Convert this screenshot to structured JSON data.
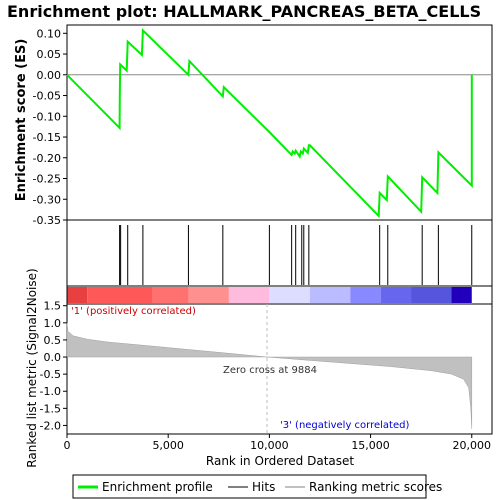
{
  "chart_data": {
    "type": "line",
    "title": "Enrichment plot: HALLMARK_PANCREAS_BETA_CELLS",
    "es_panel": {
      "ylabel": "Enrichment score (ES)",
      "ylim": [
        -0.35,
        0.12
      ],
      "yticks": [
        0.1,
        0.05,
        0.0,
        -0.05,
        -0.1,
        -0.15,
        -0.2,
        -0.25,
        -0.3,
        -0.35
      ],
      "ytick_labels": [
        "0.10",
        "0.05",
        "0.00",
        "-0.05",
        "-0.10",
        "-0.15",
        "-0.20",
        "-0.25",
        "-0.30",
        "-0.35"
      ],
      "series": [
        {
          "name": "Enrichment profile",
          "color": "#00ee00",
          "x": [
            0,
            2600,
            2610,
            2630,
            2950,
            3000,
            3700,
            3750,
            6000,
            6050,
            7700,
            7750,
            10000,
            11100,
            11150,
            11250,
            11300,
            11500,
            11550,
            11650,
            11700,
            11900,
            11950,
            12000,
            15400,
            15450,
            15800,
            15850,
            17500,
            17550,
            18300,
            18350,
            20000,
            20001
          ],
          "y": [
            0.0,
            -0.128,
            -0.05,
            0.025,
            0.01,
            0.08,
            0.048,
            0.107,
            0.0,
            0.033,
            -0.052,
            -0.03,
            -0.138,
            -0.193,
            -0.185,
            -0.19,
            -0.183,
            -0.197,
            -0.185,
            -0.19,
            -0.178,
            -0.188,
            -0.17,
            -0.17,
            -0.34,
            -0.285,
            -0.302,
            -0.245,
            -0.33,
            -0.247,
            -0.285,
            -0.187,
            -0.267,
            0.0
          ]
        }
      ]
    },
    "hits": {
      "name": "Hits",
      "positions": [
        2600,
        2650,
        3000,
        3750,
        6000,
        7700,
        10000,
        11100,
        11300,
        11600,
        11700,
        11950,
        15450,
        15850,
        17550,
        18350,
        20000
      ]
    },
    "heatmap": {
      "colors": [
        "#e84040",
        "#ff5858",
        "#ff7070",
        "#ff9090",
        "#ffbbdd",
        "#ddddff",
        "#bbbbff",
        "#8888ff",
        "#6666ee",
        "#5555dd",
        "#2200bb"
      ],
      "breaks": [
        0,
        1000,
        4200,
        6000,
        8000,
        10000,
        12000,
        14000,
        15500,
        17000,
        19000,
        20000
      ]
    },
    "metric_panel": {
      "ylabel": "Ranked list metric (Signal2Noise)",
      "xlabel": "Rank in Ordered Dataset",
      "ylim": [
        -2.25,
        1.55
      ],
      "yticks": [
        1.5,
        1.0,
        0.5,
        0.0,
        -0.5,
        -1.0,
        -1.5,
        -2.0
      ],
      "ytick_labels": [
        "1.5",
        "1.0",
        "0.5",
        "0.0",
        "-0.5",
        "-1.0",
        "-1.5",
        "-2.0"
      ],
      "xlim": [
        0,
        21000
      ],
      "xticks": [
        0,
        5000,
        10000,
        15000,
        20000
      ],
      "xtick_labels": [
        "0",
        "5,000",
        "10,000",
        "15,000",
        "20,000"
      ],
      "series": [
        {
          "name": "Ranking metric scores",
          "color": "#c0c0c0",
          "x": [
            0,
            50,
            300,
            1000,
            2000,
            4000,
            6000,
            8000,
            9884,
            12000,
            14000,
            16000,
            18000,
            19000,
            19600,
            19850,
            19950,
            20000
          ],
          "y": [
            1.0,
            0.75,
            0.62,
            0.52,
            0.44,
            0.33,
            0.22,
            0.11,
            0.0,
            -0.1,
            -0.19,
            -0.28,
            -0.4,
            -0.5,
            -0.65,
            -0.9,
            -1.5,
            -2.1
          ]
        }
      ],
      "zero_cross": 9884,
      "annotations": {
        "positive": "'1' (positively correlated)",
        "negative": "'3' (negatively correlated)",
        "zero_cross": "Zero cross at 9884"
      }
    },
    "legend": {
      "placement": "bottom",
      "items": [
        {
          "label": "Enrichment profile",
          "color": "#00ee00"
        },
        {
          "label": "Hits",
          "color": "#000000"
        },
        {
          "label": "Ranking metric scores",
          "color": "#c0c0c0"
        }
      ]
    }
  }
}
